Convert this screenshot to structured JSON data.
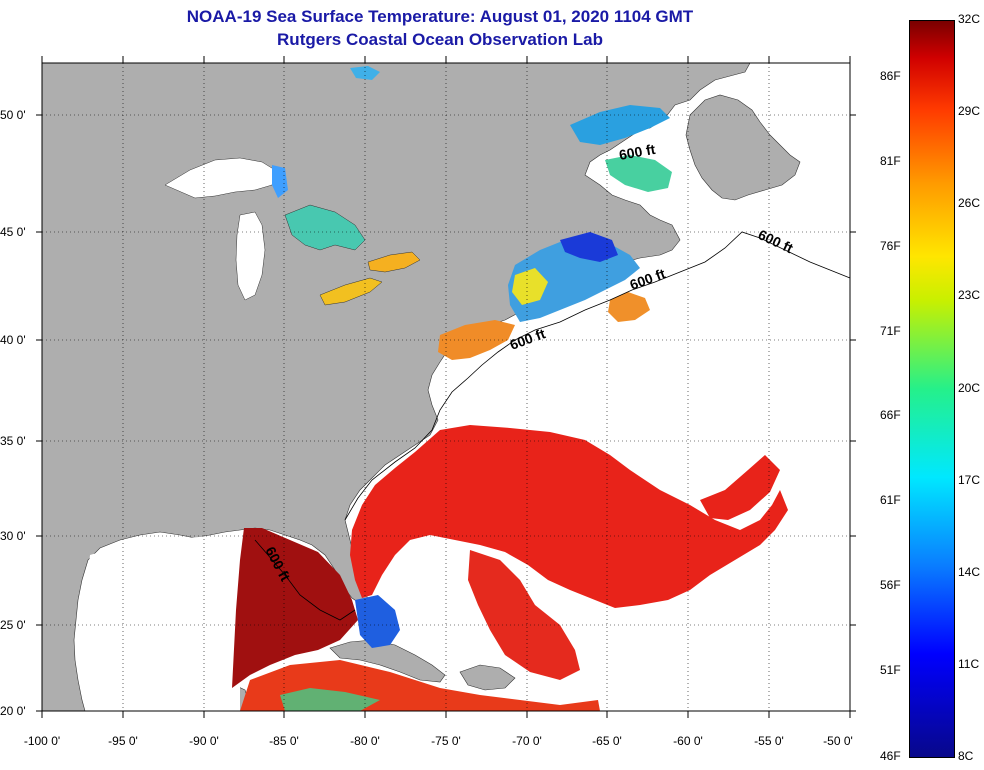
{
  "title": {
    "line1": "NOAA-19 Sea Surface Temperature:  August 01, 2020 1104 GMT",
    "line2": "Rutgers Coastal Ocean Observation Lab"
  },
  "axes": {
    "lat_labels": [
      "50 0'",
      "45 0'",
      "40 0'",
      "35 0'",
      "30 0'",
      "25 0'",
      "20 0'"
    ],
    "lon_labels": [
      "-100 0'",
      "-95 0'",
      "-90 0'",
      "-85 0'",
      "-80 0'",
      "-75 0'",
      "-70 0'",
      "-65 0'",
      "-60 0'",
      "-55 0'",
      "-50 0'"
    ]
  },
  "contour_labels": [
    "600 ft",
    "600 ft",
    "600 ft",
    "600 ft",
    "600 ft"
  ],
  "colorbar": {
    "celsius": [
      "32C",
      "29C",
      "26C",
      "23C",
      "20C",
      "17C",
      "14C",
      "11C",
      "8C"
    ],
    "fahrenheit": [
      "86F",
      "81F",
      "76F",
      "71F",
      "66F",
      "61F",
      "56F",
      "51F",
      "46F"
    ],
    "range_c": [
      8,
      32
    ]
  },
  "colors": {
    "land": "#aeaeae",
    "cloud": "#ffffff",
    "title": "#1a1aa6",
    "warm": "#e8231a",
    "hot": "#9a0a0a",
    "cool": "#1f5fe0",
    "mild": "#3fd08a",
    "cold": "#0a2bd0"
  }
}
